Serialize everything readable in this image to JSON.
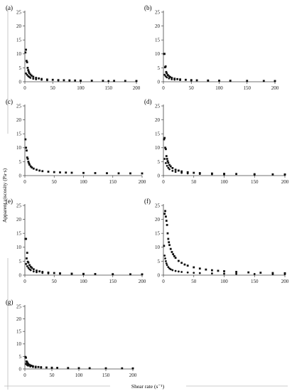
{
  "figure": {
    "ylabel": "Apparent viscosity (Pa·s)",
    "xlabel": "Shear rate (s⁻¹)"
  },
  "chart_data": [
    {
      "panel": "(a)",
      "type": "scatter",
      "xlim": [
        0,
        200
      ],
      "ylim": [
        0,
        25
      ],
      "xticks": [
        0,
        50,
        100,
        150,
        200
      ],
      "yticks": [
        0,
        5,
        10,
        15,
        20,
        25
      ],
      "series": [
        {
          "x": [
            1,
            2,
            3,
            4,
            5,
            6,
            7,
            8,
            10,
            12,
            15,
            20,
            25,
            30,
            40,
            50,
            60,
            70,
            80,
            90,
            100,
            120,
            140,
            160,
            180,
            200
          ],
          "y": [
            10.5,
            11.5,
            7.5,
            7.0,
            5.0,
            4.2,
            3.6,
            3.1,
            2.6,
            2.2,
            1.8,
            1.4,
            1.2,
            1.0,
            0.8,
            0.7,
            0.6,
            0.55,
            0.5,
            0.45,
            0.42,
            0.38,
            0.35,
            0.32,
            0.3,
            0.28
          ]
        },
        {
          "x": [
            2,
            4,
            6,
            8,
            10,
            15,
            20,
            30,
            40,
            60,
            80,
            100,
            150,
            200
          ],
          "y": [
            3.0,
            2.5,
            2.0,
            1.7,
            1.4,
            1.1,
            0.9,
            0.7,
            0.55,
            0.45,
            0.38,
            0.33,
            0.27,
            0.22
          ]
        }
      ]
    },
    {
      "panel": "(b)",
      "type": "scatter",
      "xlim": [
        0,
        200
      ],
      "ylim": [
        0,
        25
      ],
      "xticks": [
        0,
        50,
        100,
        150,
        200
      ],
      "yticks": [
        0,
        5,
        10,
        15,
        20,
        25
      ],
      "series": [
        {
          "x": [
            1,
            2,
            3,
            4,
            5,
            6,
            8,
            10,
            12,
            15,
            20,
            25,
            30,
            40,
            50,
            60,
            80,
            100,
            120,
            150,
            180,
            200
          ],
          "y": [
            10.0,
            10.0,
            5.2,
            5.5,
            3.5,
            3.0,
            2.4,
            2.0,
            1.7,
            1.4,
            1.1,
            0.95,
            0.85,
            0.7,
            0.6,
            0.52,
            0.45,
            0.4,
            0.36,
            0.32,
            0.29,
            0.27
          ]
        },
        {
          "x": [
            2,
            4,
            6,
            10,
            15,
            20,
            30,
            50,
            80,
            120,
            200
          ],
          "y": [
            2.5,
            2.0,
            1.6,
            1.2,
            0.9,
            0.75,
            0.6,
            0.45,
            0.35,
            0.28,
            0.22
          ]
        }
      ]
    },
    {
      "panel": "(c)",
      "type": "scatter",
      "xlim": [
        0,
        200
      ],
      "ylim": [
        0,
        25
      ],
      "xticks": [
        0,
        50,
        100,
        150,
        200
      ],
      "yticks": [
        0,
        5,
        10,
        15,
        20,
        25
      ],
      "series": [
        {
          "x": [
            1,
            2,
            3,
            4,
            5,
            6,
            7,
            8,
            10,
            12,
            15,
            20,
            25,
            30,
            40,
            50,
            60,
            70,
            80,
            100,
            120,
            140,
            160,
            180,
            200
          ],
          "y": [
            13.0,
            10.0,
            9.0,
            6.5,
            6.0,
            5.0,
            4.4,
            3.9,
            3.3,
            2.9,
            2.5,
            2.1,
            1.8,
            1.6,
            1.4,
            1.25,
            1.15,
            1.08,
            1.02,
            0.95,
            0.9,
            0.86,
            0.82,
            0.8,
            0.78
          ]
        }
      ]
    },
    {
      "panel": "(d)",
      "type": "scatter",
      "xlim": [
        0,
        200
      ],
      "ylim": [
        0,
        25
      ],
      "xticks": [
        0,
        50,
        100,
        150,
        200
      ],
      "yticks": [
        0,
        5,
        10,
        15,
        20,
        25
      ],
      "series": [
        {
          "x": [
            1,
            2,
            3,
            4,
            5,
            6,
            7,
            8,
            10,
            12,
            15,
            20,
            25,
            30,
            40,
            50,
            60,
            80,
            100,
            120,
            150,
            180,
            200
          ],
          "y": [
            13.0,
            13.5,
            10.0,
            9.5,
            7.0,
            6.0,
            5.2,
            4.6,
            3.8,
            3.3,
            2.7,
            2.1,
            1.8,
            1.5,
            1.2,
            1.0,
            0.9,
            0.75,
            0.65,
            0.58,
            0.5,
            0.45,
            0.42
          ]
        },
        {
          "x": [
            2,
            4,
            6,
            8,
            10,
            15,
            20,
            30,
            40,
            60,
            80,
            100,
            150,
            200
          ],
          "y": [
            6.0,
            4.5,
            3.5,
            2.8,
            2.3,
            1.7,
            1.35,
            1.0,
            0.8,
            0.6,
            0.5,
            0.43,
            0.35,
            0.3
          ]
        }
      ]
    },
    {
      "panel": "(e)",
      "type": "scatter",
      "xlim": [
        0,
        200
      ],
      "ylim": [
        0,
        25
      ],
      "xticks": [
        0,
        50,
        100,
        150,
        200
      ],
      "yticks": [
        0,
        5,
        10,
        15,
        20,
        25
      ],
      "series": [
        {
          "x": [
            1,
            2,
            3,
            4,
            5,
            6,
            8,
            10,
            12,
            15,
            20,
            25,
            30,
            40,
            50,
            60,
            80,
            100,
            120,
            150,
            180,
            200
          ],
          "y": [
            13.0,
            13.0,
            6.0,
            8.0,
            4.8,
            4.5,
            3.6,
            3.0,
            2.6,
            2.1,
            1.6,
            1.35,
            1.15,
            0.9,
            0.75,
            0.65,
            0.52,
            0.45,
            0.4,
            0.35,
            0.31,
            0.29
          ]
        },
        {
          "x": [
            2,
            4,
            6,
            8,
            10,
            15,
            20,
            30,
            40,
            60,
            80,
            100,
            150,
            200
          ],
          "y": [
            4.0,
            3.2,
            2.6,
            2.1,
            1.8,
            1.3,
            1.05,
            0.8,
            0.65,
            0.5,
            0.42,
            0.36,
            0.29,
            0.25
          ]
        }
      ]
    },
    {
      "panel": "(f)",
      "type": "scatter",
      "xlim": [
        0,
        200
      ],
      "ylim": [
        0,
        25
      ],
      "xticks": [
        0,
        50,
        100,
        150,
        200
      ],
      "yticks": [
        0,
        5,
        10,
        15,
        20,
        25
      ],
      "series": [
        {
          "x": [
            1,
            2,
            3,
            4,
            5,
            6,
            7,
            8,
            9,
            10,
            12,
            14,
            16,
            18,
            20,
            25,
            30,
            35,
            40,
            50,
            60,
            70,
            80,
            90,
            100,
            120,
            140,
            160,
            180,
            200
          ],
          "y": [
            10.5,
            22.0,
            23.0,
            21.0,
            19.5,
            18.0,
            15.0,
            13.0,
            11.8,
            10.8,
            9.4,
            8.3,
            7.5,
            6.8,
            6.2,
            5.1,
            4.4,
            3.8,
            3.4,
            2.8,
            2.35,
            2.0,
            1.75,
            1.55,
            1.4,
            1.15,
            0.98,
            0.85,
            0.75,
            0.68
          ]
        },
        {
          "x": [
            2,
            3,
            4,
            5,
            6,
            8,
            10,
            12,
            15,
            20,
            25,
            30,
            40,
            50,
            60,
            80,
            100,
            120,
            150,
            180,
            200
          ],
          "y": [
            7.0,
            6.0,
            5.0,
            4.2,
            3.6,
            2.9,
            2.4,
            2.1,
            1.8,
            1.5,
            1.3,
            1.15,
            0.95,
            0.82,
            0.72,
            0.6,
            0.52,
            0.46,
            0.4,
            0.36,
            0.34
          ]
        }
      ]
    },
    {
      "panel": "(g)",
      "type": "scatter",
      "xlim": [
        0,
        200
      ],
      "ylim": [
        0,
        25
      ],
      "xticks": [
        0,
        50,
        100,
        150,
        200
      ],
      "yticks": [
        0,
        5,
        10,
        15,
        20,
        25
      ],
      "series": [
        {
          "x": [
            1,
            2,
            3,
            4,
            5,
            6,
            8,
            10,
            12,
            15,
            20,
            25,
            30,
            40,
            50,
            60,
            80,
            100,
            120,
            150,
            180,
            200
          ],
          "y": [
            4.8,
            4.5,
            3.0,
            2.8,
            2.3,
            2.0,
            1.7,
            1.45,
            1.3,
            1.1,
            0.9,
            0.78,
            0.7,
            0.58,
            0.5,
            0.45,
            0.38,
            0.33,
            0.3,
            0.27,
            0.25,
            0.23
          ]
        },
        {
          "x": [
            2,
            4,
            6,
            10,
            15,
            20,
            30,
            50,
            80,
            120,
            200
          ],
          "y": [
            2.0,
            1.6,
            1.3,
            1.0,
            0.8,
            0.65,
            0.52,
            0.4,
            0.32,
            0.26,
            0.2
          ]
        }
      ]
    }
  ]
}
